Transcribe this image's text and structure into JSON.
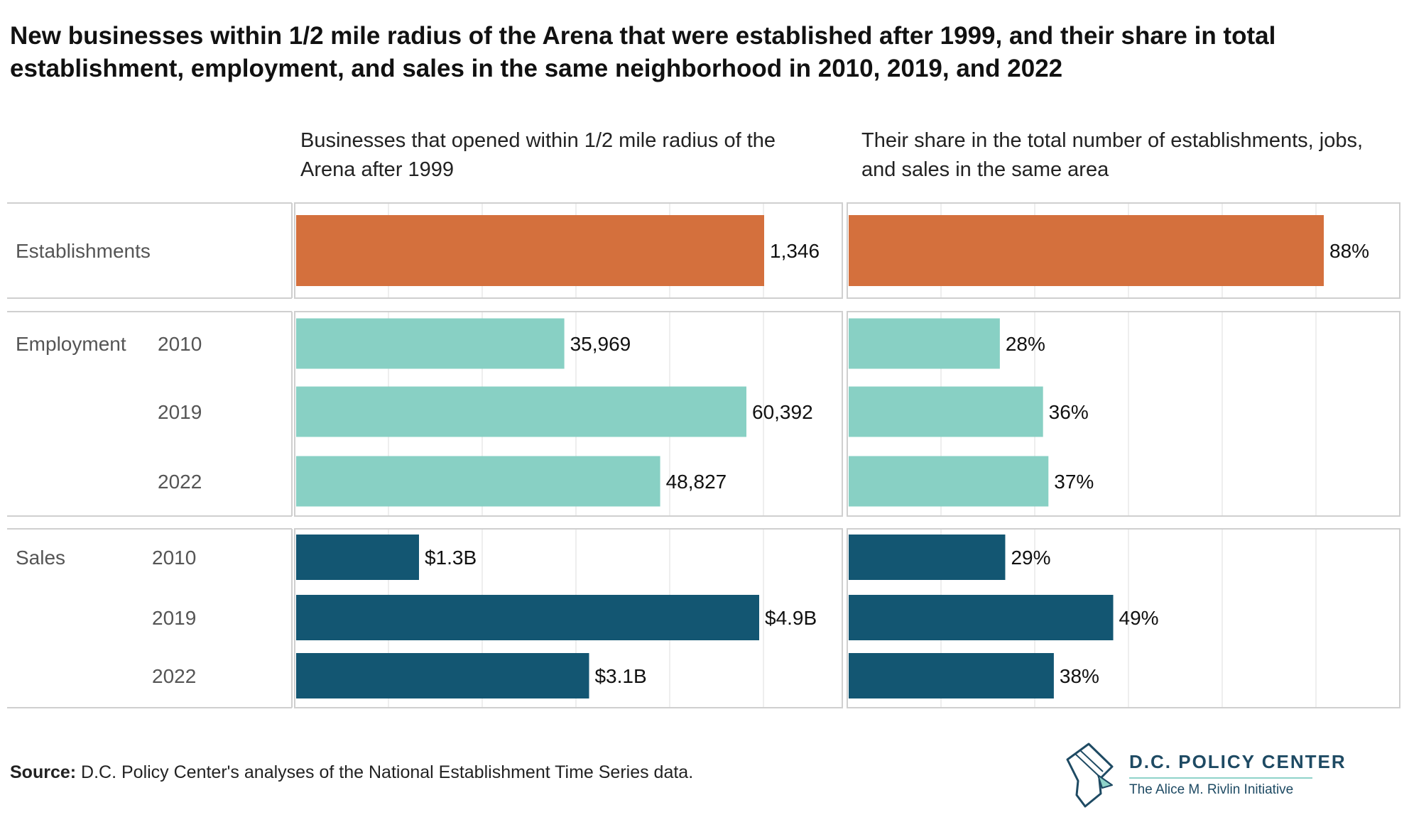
{
  "title": "New businesses within 1/2 mile radius of the Arena that were established after 1999, and their share in total establishment, employment, and sales in the same neighborhood in 2010, 2019, and 2022",
  "panels": {
    "left_header": "Businesses that opened within 1/2 mile radius of the Arena after 1999",
    "right_header": "Their share in the total number of establishments, jobs, and sales in the same area"
  },
  "colors": {
    "establishments": "#d4703d",
    "employment": "#88d0c4",
    "sales": "#135672",
    "grid": "#e8e8e8",
    "frame": "#cfcfcf"
  },
  "chart_data": [
    {
      "type": "bar",
      "orientation": "horizontal",
      "title": "Businesses that opened within 1/2 mile radius of the Arena after 1999",
      "groups": [
        {
          "name": "Establishments",
          "categories": [
            ""
          ],
          "values": [
            1346
          ],
          "labels": [
            "1,346"
          ],
          "color": "#d4703d"
        },
        {
          "name": "Employment",
          "categories": [
            "2010",
            "2019",
            "2022"
          ],
          "values": [
            35969,
            60392,
            48827
          ],
          "labels": [
            "35,969",
            "60,392",
            "48,827"
          ],
          "color": "#88d0c4"
        },
        {
          "name": "Sales",
          "categories": [
            "2010",
            "2019",
            "2022"
          ],
          "values": [
            1.3,
            4.9,
            3.1
          ],
          "labels": [
            "$1.3B",
            "$4.9B",
            "$3.1B"
          ],
          "unit": "billion USD",
          "color": "#135672"
        }
      ]
    },
    {
      "type": "bar",
      "orientation": "horizontal",
      "title": "Their share in the total number of establishments, jobs, and sales in the same area",
      "groups": [
        {
          "name": "Establishments",
          "categories": [
            ""
          ],
          "values": [
            88
          ],
          "labels": [
            "88%"
          ],
          "unit": "percent",
          "color": "#d4703d"
        },
        {
          "name": "Employment",
          "categories": [
            "2010",
            "2019",
            "2022"
          ],
          "values": [
            28,
            36,
            37
          ],
          "labels": [
            "28%",
            "36%",
            "37%"
          ],
          "unit": "percent",
          "color": "#88d0c4"
        },
        {
          "name": "Sales",
          "categories": [
            "2010",
            "2019",
            "2022"
          ],
          "values": [
            29,
            49,
            38
          ],
          "labels": [
            "29%",
            "49%",
            "38%"
          ],
          "unit": "percent",
          "color": "#135672"
        }
      ]
    }
  ],
  "source": {
    "label": "Source:",
    "text": "D.C. Policy Center's analyses of the National Establishment Time Series data."
  },
  "logo": {
    "name": "D.C. POLICY CENTER",
    "subtitle": "The Alice M. Rivlin Initiative",
    "icon": "dc-map-pencil-icon"
  }
}
